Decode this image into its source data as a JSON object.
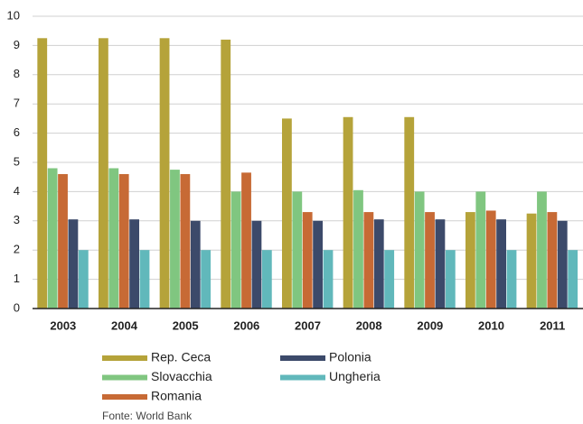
{
  "chart_data": {
    "type": "bar",
    "categories": [
      "2003",
      "2004",
      "2005",
      "2006",
      "2007",
      "2008",
      "2009",
      "2010",
      "2011"
    ],
    "series": [
      {
        "name": "Rep. Ceca",
        "color": "#b5a33a",
        "values": [
          9.25,
          9.25,
          9.25,
          9.2,
          6.5,
          6.55,
          6.55,
          3.3,
          3.25
        ]
      },
      {
        "name": "Slovacchia",
        "color": "#80c680",
        "values": [
          4.8,
          4.8,
          4.75,
          4.0,
          4.0,
          4.05,
          4.0,
          4.0,
          4.0
        ]
      },
      {
        "name": "Romania",
        "color": "#c76a35",
        "values": [
          4.6,
          4.6,
          4.6,
          4.65,
          3.3,
          3.3,
          3.3,
          3.35,
          3.3
        ]
      },
      {
        "name": "Polonia",
        "color": "#3c4a6a",
        "values": [
          3.05,
          3.05,
          3.0,
          3.0,
          3.0,
          3.05,
          3.05,
          3.05,
          3.0
        ]
      },
      {
        "name": "Ungheria",
        "color": "#61b8bb",
        "values": [
          2.0,
          2.0,
          2.0,
          2.0,
          2.0,
          2.0,
          2.0,
          2.0,
          2.0
        ]
      }
    ],
    "ylim": [
      0,
      10
    ],
    "yticks": [
      0,
      1,
      2,
      3,
      4,
      5,
      6,
      7,
      8,
      9,
      10
    ],
    "grid": true,
    "source": "Fonte: World Bank"
  }
}
